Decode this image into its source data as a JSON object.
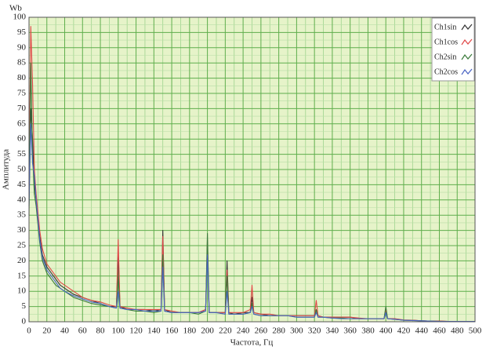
{
  "chart_data": {
    "type": "line",
    "y_unit": "Wb",
    "xlabel": "Частота, Гц",
    "ylabel": "Амплитуда",
    "x": [
      0,
      2,
      4,
      6,
      8,
      10,
      12,
      15,
      20,
      25,
      30,
      35,
      40,
      50,
      60,
      70,
      80,
      90,
      98,
      100,
      102,
      110,
      120,
      130,
      140,
      148,
      150,
      152,
      160,
      170,
      180,
      190,
      198,
      200,
      202,
      210,
      220,
      222,
      224,
      230,
      240,
      248,
      250,
      252,
      260,
      270,
      280,
      290,
      300,
      310,
      320,
      322,
      324,
      330,
      340,
      350,
      360,
      370,
      380,
      390,
      398,
      400,
      402,
      410,
      420,
      430,
      440,
      450,
      460,
      470,
      480,
      490,
      500
    ],
    "series": [
      {
        "name": "Ch1sin",
        "color": "#333333",
        "values": [
          40,
          70,
          60,
          45,
          40,
          35,
          28,
          22,
          18,
          16,
          14,
          12,
          11,
          9,
          8,
          7,
          6,
          5,
          5,
          22,
          5,
          4,
          4,
          4,
          3.5,
          4,
          30,
          4,
          3,
          3,
          3,
          3,
          4,
          25,
          3,
          3,
          3,
          20,
          3,
          2.5,
          3,
          3,
          8,
          3,
          2.5,
          2,
          2,
          2,
          2,
          2,
          2,
          4,
          2,
          1.5,
          1.5,
          1.5,
          1.5,
          1,
          1,
          1,
          1,
          3,
          1,
          1,
          0.5,
          0.5,
          0.3,
          0.2,
          0.2,
          0.1,
          0.1,
          0.1,
          0.1
        ]
      },
      {
        "name": "Ch1cos",
        "color": "#e04848",
        "values": [
          45,
          97,
          78,
          50,
          42,
          36,
          30,
          24,
          19,
          17,
          15,
          13,
          12,
          10,
          8,
          7,
          6.5,
          5.5,
          5,
          27,
          5,
          4.5,
          4,
          4,
          4,
          4,
          28,
          4,
          3.5,
          3,
          3,
          3,
          4,
          27,
          3,
          3,
          3,
          17,
          3,
          3,
          3,
          4,
          12,
          3,
          2.5,
          2.5,
          2,
          2,
          2,
          2,
          2,
          7,
          2,
          1.5,
          1.5,
          1.5,
          1.5,
          1.2,
          1,
          1,
          1,
          4,
          1,
          1,
          0.6,
          0.5,
          0.3,
          0.2,
          0.2,
          0.1,
          0.1,
          0.1,
          0.1
        ]
      },
      {
        "name": "Ch2sin",
        "color": "#3a7a3a",
        "values": [
          35,
          85,
          55,
          42,
          38,
          32,
          26,
          20,
          16,
          14,
          12,
          11,
          10,
          8,
          7,
          6,
          5.5,
          5,
          4.5,
          15,
          4.5,
          4,
          3.5,
          3.5,
          3,
          3.5,
          22,
          3.5,
          3,
          3,
          3,
          2.5,
          3.5,
          29,
          3,
          3,
          2.5,
          15,
          2.5,
          2.5,
          2.5,
          3,
          6,
          2.5,
          2,
          2,
          2,
          2,
          1.5,
          1.5,
          1.5,
          4,
          1.5,
          1.5,
          1.2,
          1.2,
          1,
          1,
          1,
          1,
          1,
          5,
          1,
          0.8,
          0.5,
          0.4,
          0.3,
          0.2,
          0.1,
          0.1,
          0.1,
          0.1,
          0.1
        ]
      },
      {
        "name": "Ch2cos",
        "color": "#4a64c4",
        "values": [
          38,
          65,
          52,
          48,
          40,
          34,
          27,
          21,
          17,
          15,
          13,
          11,
          10,
          8.5,
          7.5,
          6.5,
          6,
          5,
          4.5,
          10,
          4.5,
          4,
          4,
          3.5,
          3.5,
          3.5,
          18,
          3.5,
          3,
          3,
          3,
          3,
          3.5,
          22,
          3,
          3,
          2.5,
          10,
          2.5,
          2.5,
          2.5,
          3,
          5,
          2.5,
          2,
          2,
          2,
          2,
          1.5,
          1.5,
          1.5,
          3,
          1.5,
          1.5,
          1.2,
          1,
          1,
          1,
          1,
          1,
          1,
          3,
          1,
          0.8,
          0.5,
          0.4,
          0.3,
          0.2,
          0.1,
          0.1,
          0.1,
          0.1,
          0.1
        ]
      }
    ],
    "xlim": [
      0,
      500
    ],
    "ylim": [
      0,
      100
    ],
    "xticks": [
      0,
      20,
      40,
      60,
      80,
      100,
      120,
      140,
      160,
      180,
      200,
      220,
      240,
      260,
      280,
      300,
      320,
      340,
      360,
      380,
      400,
      420,
      440,
      460,
      480,
      500
    ],
    "yticks": [
      0,
      5,
      10,
      15,
      20,
      25,
      30,
      35,
      40,
      45,
      50,
      55,
      60,
      65,
      70,
      75,
      80,
      85,
      90,
      95,
      100
    ],
    "grid": true,
    "legend": "top-right"
  }
}
